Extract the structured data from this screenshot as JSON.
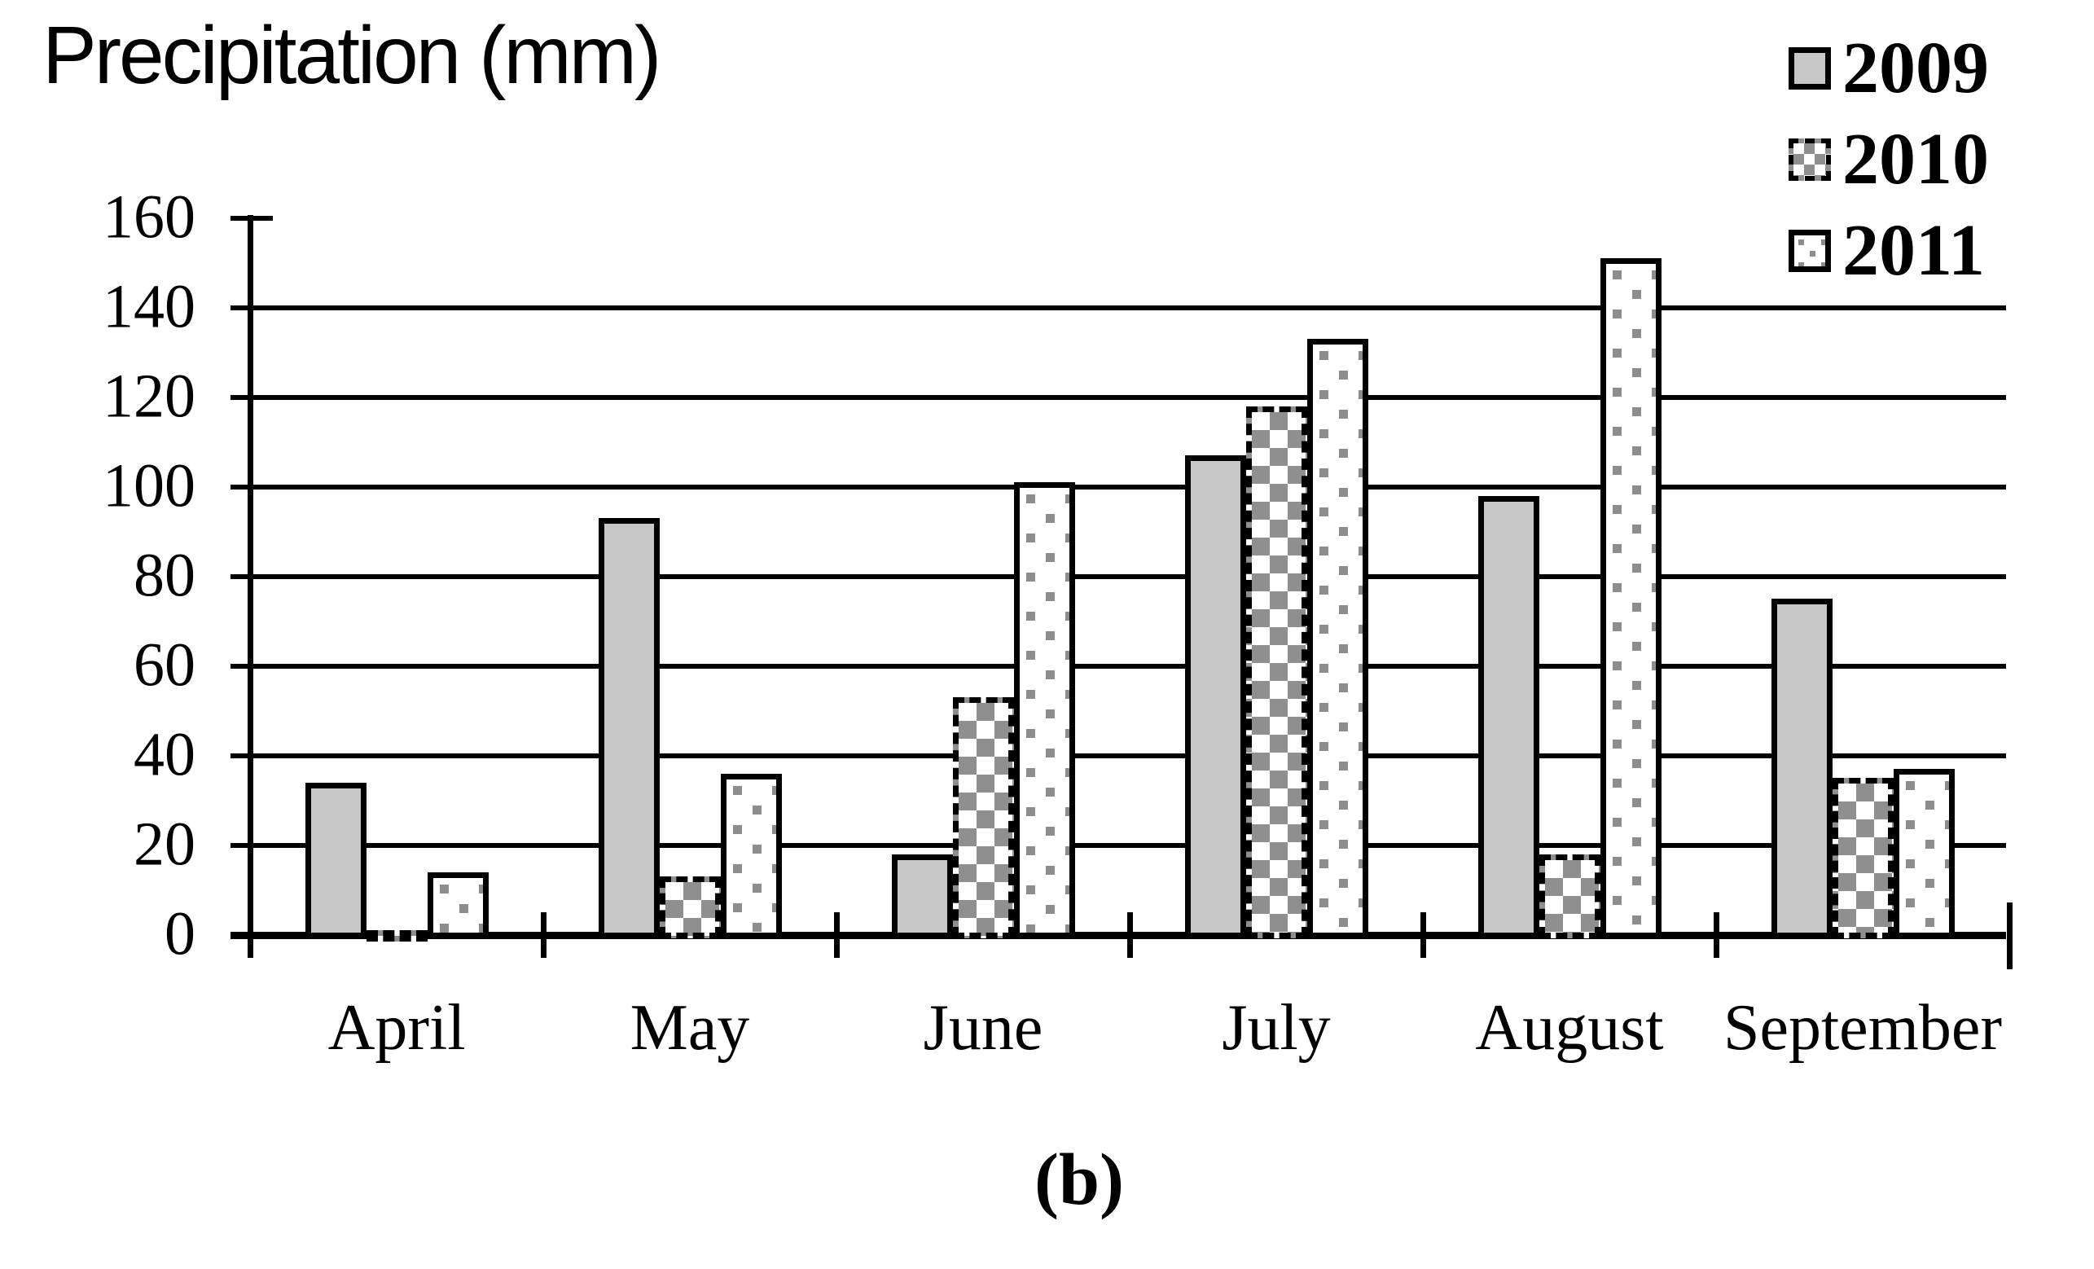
{
  "title": "Precipitation (mm)",
  "caption": "(b)",
  "legend": [
    {
      "label": "2009",
      "swatch": "solid-gray-square-icon"
    },
    {
      "label": "2010",
      "swatch": "checkerboard-square-icon"
    },
    {
      "label": "2011",
      "swatch": "dotted-square-icon"
    }
  ],
  "colors": {
    "foreground": "#000000",
    "background": "#ffffff",
    "bar_gray": "#c7c7c7",
    "pattern_gray": "#8d8d8d"
  },
  "chart_data": {
    "type": "bar",
    "title": "Precipitation (mm)",
    "ylabel": "Precipitation (mm)",
    "xlabel": "",
    "categories": [
      "April",
      "May",
      "June",
      "July",
      "August",
      "September"
    ],
    "series": [
      {
        "name": "2009",
        "pattern": "solid-light-gray",
        "values": [
          34,
          93,
          18,
          107,
          98,
          75
        ]
      },
      {
        "name": "2010",
        "pattern": "checkerboard-dashed-border",
        "values": [
          1,
          13,
          53,
          118,
          18,
          35
        ]
      },
      {
        "name": "2011",
        "pattern": "dotted",
        "values": [
          14,
          36,
          101,
          133,
          151,
          37
        ]
      }
    ],
    "ylim": [
      0,
      160
    ],
    "yticks": [
      0,
      20,
      40,
      60,
      80,
      100,
      120,
      140,
      160
    ],
    "grid": "horizontal-black-lines",
    "legend_position": "top-right",
    "caption": "(b)"
  }
}
